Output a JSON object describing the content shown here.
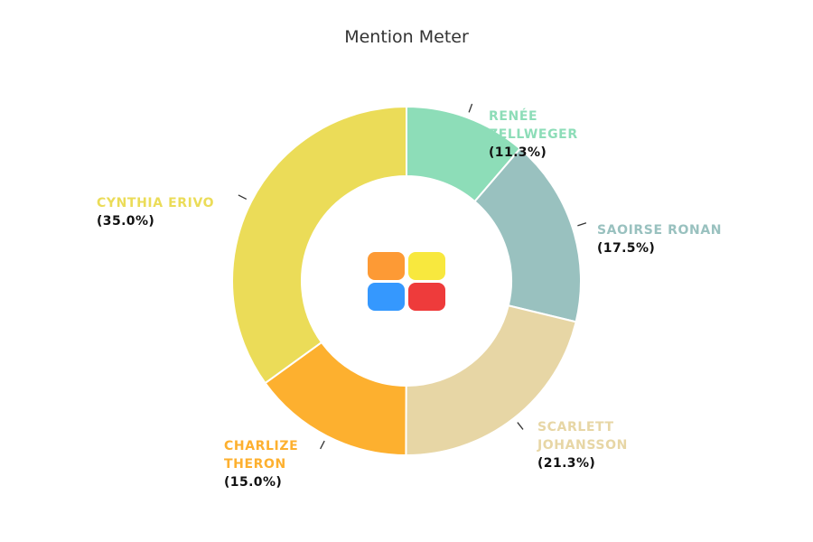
{
  "chart_data": {
    "type": "pie",
    "title": "Mention Meter",
    "donut": true,
    "legend": "none",
    "slices": [
      {
        "name": "RENÉE ZELLWEGER",
        "name_lines": [
          "RENÉE",
          "ZELLWEGER"
        ],
        "value": 11.3,
        "label": "(11.3%)",
        "color": "#8dddb8"
      },
      {
        "name": "SAOIRSE RONAN",
        "name_lines": [
          "SAOIRSE RONAN"
        ],
        "value": 17.5,
        "label": "(17.5%)",
        "color": "#99c1bf"
      },
      {
        "name": "SCARLETT JOHANSSON",
        "name_lines": [
          "SCARLETT",
          "JOHANSSON"
        ],
        "value": 21.3,
        "label": "(21.3%)",
        "color": "#e7d6a5"
      },
      {
        "name": "CHARLIZE THERON",
        "name_lines": [
          "CHARLIZE",
          "THERON"
        ],
        "value": 15.0,
        "label": "(15.0%)",
        "color": "#fdb02f"
      },
      {
        "name": "CYNTHIA ERIVO",
        "name_lines": [
          "CYNTHIA ERIVO"
        ],
        "value": 35.0,
        "label": "(35.0%)",
        "color": "#ebdc58"
      }
    ]
  },
  "center_logo": {
    "icon": "four-squares-logo-icon",
    "colors": [
      "#fd9a35",
      "#f8e83e",
      "#3598fe",
      "#ee3b3b"
    ]
  }
}
